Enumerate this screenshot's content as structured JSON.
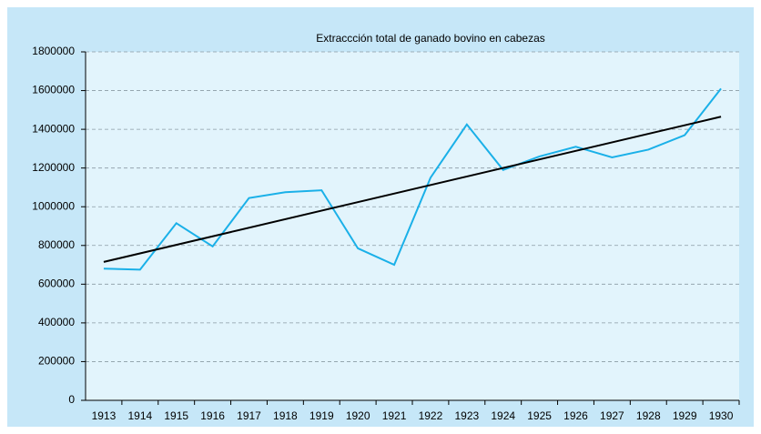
{
  "chart_data": {
    "type": "line",
    "title": "Extraccción total de ganado bovino en cabezas",
    "categories": [
      "1913",
      "1914",
      "1915",
      "1916",
      "1917",
      "1918",
      "1919",
      "1920",
      "1921",
      "1922",
      "1923",
      "1924",
      "1925",
      "1926",
      "1927",
      "1928",
      "1929",
      "1930"
    ],
    "series": [
      {
        "color": "#1ab0e8",
        "values": [
          680000,
          675000,
          915000,
          795000,
          1045000,
          1075000,
          1085000,
          785000,
          700000,
          1150000,
          1425000,
          1190000,
          1260000,
          1310000,
          1255000,
          1295000,
          1370000,
          1610000
        ]
      }
    ],
    "trendline": {
      "color": "#000000",
      "values": [
        715000,
        1465000
      ]
    },
    "ylim": [
      0,
      1800000
    ],
    "yticks": [
      0,
      200000,
      400000,
      600000,
      800000,
      1000000,
      1200000,
      1400000,
      1600000,
      1800000
    ],
    "grid": true
  }
}
